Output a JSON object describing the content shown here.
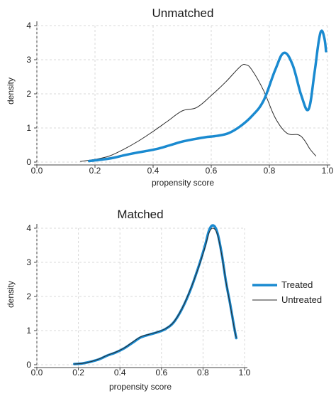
{
  "chart_data": [
    {
      "type": "line",
      "title": "Unmatched",
      "xlabel": "propensity score",
      "ylabel": "density",
      "xlim": [
        0,
        1
      ],
      "ylim": [
        0,
        4
      ],
      "xticks": [
        "0.0",
        "0.2",
        "0.4",
        "0.6",
        "0.8",
        "1.0"
      ],
      "yticks": [
        "0",
        "1",
        "2",
        "3",
        "4"
      ],
      "grid": true,
      "series": [
        {
          "name": "Treated",
          "color": "#1a8ad0",
          "x": [
            0.18,
            0.22,
            0.26,
            0.3,
            0.34,
            0.38,
            0.42,
            0.46,
            0.5,
            0.54,
            0.58,
            0.62,
            0.66,
            0.7,
            0.74,
            0.78,
            0.82,
            0.85,
            0.88,
            0.91,
            0.935,
            0.955,
            0.97,
            0.98,
            0.99,
            0.995
          ],
          "y": [
            0.03,
            0.07,
            0.12,
            0.2,
            0.27,
            0.33,
            0.4,
            0.5,
            0.6,
            0.67,
            0.73,
            0.77,
            0.85,
            1.05,
            1.35,
            1.8,
            2.7,
            3.2,
            2.85,
            1.95,
            1.55,
            2.6,
            3.55,
            3.85,
            3.6,
            3.25
          ]
        },
        {
          "name": "Untreated",
          "color": "#2a2a2a",
          "x": [
            0.15,
            0.2,
            0.25,
            0.3,
            0.35,
            0.4,
            0.45,
            0.5,
            0.55,
            0.6,
            0.65,
            0.7,
            0.72,
            0.74,
            0.78,
            0.82,
            0.86,
            0.9,
            0.92,
            0.94,
            0.96
          ],
          "y": [
            0.02,
            0.08,
            0.18,
            0.38,
            0.62,
            0.9,
            1.2,
            1.5,
            1.6,
            1.95,
            2.35,
            2.8,
            2.85,
            2.7,
            2.1,
            1.3,
            0.85,
            0.8,
            0.65,
            0.38,
            0.18
          ]
        }
      ]
    },
    {
      "type": "line",
      "title": "Matched",
      "xlabel": "propensity score",
      "ylabel": "density",
      "xlim": [
        0,
        1
      ],
      "ylim": [
        0,
        4
      ],
      "xticks": [
        "0.0",
        "0.2",
        "0.4",
        "0.6",
        "0.8",
        "1.0"
      ],
      "yticks": [
        "0",
        "1",
        "2",
        "3",
        "4"
      ],
      "grid": true,
      "series": [
        {
          "name": "Treated",
          "color": "#1a8ad0",
          "x": [
            0.18,
            0.22,
            0.26,
            0.3,
            0.34,
            0.38,
            0.42,
            0.46,
            0.5,
            0.54,
            0.58,
            0.62,
            0.66,
            0.7,
            0.74,
            0.78,
            0.81,
            0.83,
            0.85,
            0.87,
            0.89,
            0.91,
            0.93,
            0.95,
            0.96
          ],
          "y": [
            0.02,
            0.04,
            0.09,
            0.16,
            0.27,
            0.36,
            0.48,
            0.64,
            0.8,
            0.88,
            0.95,
            1.05,
            1.25,
            1.65,
            2.2,
            2.9,
            3.5,
            3.95,
            4.08,
            3.85,
            3.25,
            2.45,
            1.8,
            1.1,
            0.78
          ]
        },
        {
          "name": "Untreated",
          "color": "#2a2a2a",
          "x": [
            0.18,
            0.22,
            0.26,
            0.3,
            0.34,
            0.38,
            0.42,
            0.46,
            0.5,
            0.54,
            0.58,
            0.62,
            0.66,
            0.7,
            0.74,
            0.78,
            0.81,
            0.83,
            0.85,
            0.87,
            0.89,
            0.91,
            0.93,
            0.95,
            0.96
          ],
          "y": [
            0.02,
            0.04,
            0.09,
            0.17,
            0.28,
            0.37,
            0.49,
            0.66,
            0.82,
            0.89,
            0.96,
            1.06,
            1.26,
            1.66,
            2.22,
            2.88,
            3.45,
            3.88,
            4.0,
            3.8,
            3.22,
            2.45,
            1.78,
            1.08,
            0.8
          ]
        }
      ]
    }
  ],
  "legend": {
    "placement": "right",
    "items": [
      {
        "label": "Treated",
        "color": "#1a8ad0"
      },
      {
        "label": "Untreated",
        "color": "#2a2a2a"
      }
    ]
  }
}
